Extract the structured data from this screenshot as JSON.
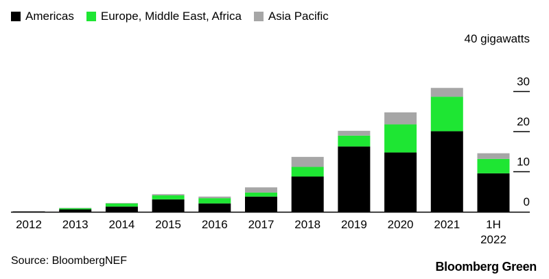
{
  "colors": {
    "americas": "#000000",
    "emea": "#1ee633",
    "apac": "#a6a6a6"
  },
  "source": "Source: BloombergNEF",
  "brand": "Bloomberg Green",
  "chart_data": {
    "type": "bar",
    "stacked": true,
    "categories": [
      "2012",
      "2013",
      "2014",
      "2015",
      "2016",
      "2017",
      "2018",
      "2019",
      "2020",
      "2021",
      "1H\n2022"
    ],
    "series": [
      {
        "name": "Americas",
        "color_key": "americas",
        "values": [
          0.1,
          0.6,
          1.3,
          3.1,
          2.1,
          3.8,
          8.8,
          16.3,
          14.8,
          20.1,
          9.6
        ]
      },
      {
        "name": "Europe, Middle East, Africa",
        "color_key": "emea",
        "values": [
          0.0,
          0.3,
          0.8,
          1.0,
          1.3,
          1.0,
          2.4,
          2.7,
          7.0,
          8.6,
          3.6
        ]
      },
      {
        "name": "Asia Pacific",
        "color_key": "apac",
        "values": [
          0.0,
          0.1,
          0.1,
          0.3,
          0.4,
          1.3,
          2.5,
          1.2,
          3.0,
          2.2,
          1.4
        ]
      }
    ],
    "y_unit_label": "40 gigawatts",
    "y_ticks": [
      "0",
      "10",
      "20",
      "30"
    ],
    "ylim": [
      0,
      40
    ],
    "legend_position": "top-left",
    "grid": false
  }
}
